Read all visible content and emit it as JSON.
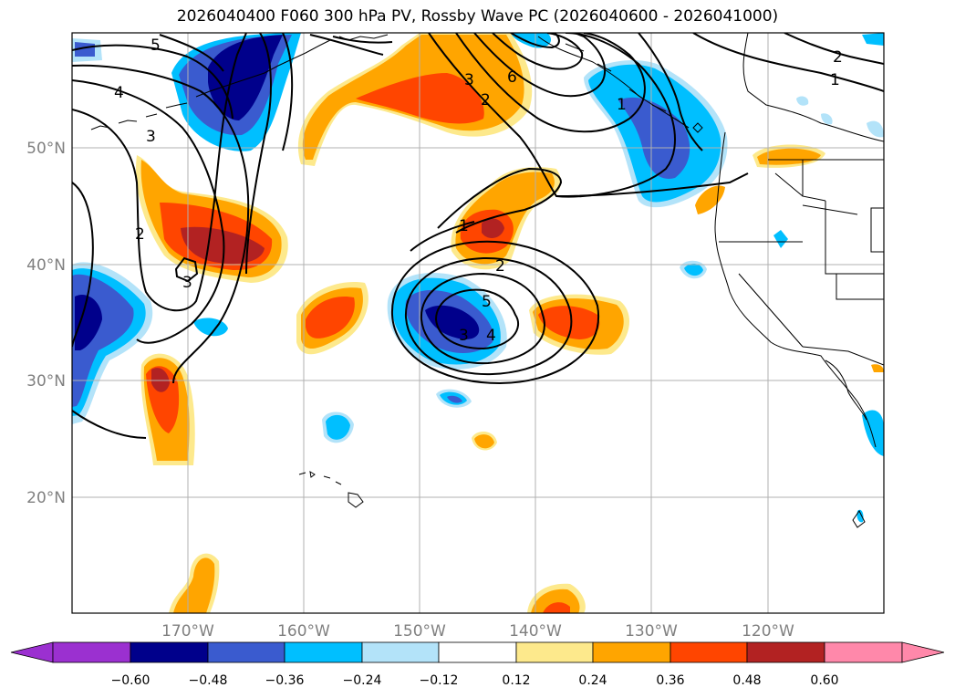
{
  "title": "2026040400 F060 300 hPa PV, Rossby Wave PC (2026040600 - 2026041000)",
  "map": {
    "longitude_labels": [
      "170°W",
      "160°W",
      "150°W",
      "140°W",
      "130°W",
      "120°W"
    ],
    "latitude_labels": [
      "50°N",
      "40°N",
      "30°N",
      "20°N"
    ],
    "axis_label_color": "#808080",
    "contour_labels": [
      "5",
      "4",
      "3",
      "2",
      "2",
      "3",
      "1",
      "2",
      "3",
      "4",
      "5",
      "3",
      "6",
      "1",
      "2",
      "1"
    ]
  },
  "colorbar": {
    "tick_labels": [
      "−0.60",
      "−0.48",
      "−0.36",
      "−0.24",
      "−0.12",
      "0.12",
      "0.24",
      "0.36",
      "0.48",
      "0.60"
    ],
    "colors": [
      "#9b30d0",
      "#00008b",
      "#3a5bcf",
      "#00bfff",
      "#b3e3f9",
      "#ffffff",
      "#fde98c",
      "#ffa500",
      "#ff4500",
      "#b22222",
      "#ff88aa"
    ]
  }
}
